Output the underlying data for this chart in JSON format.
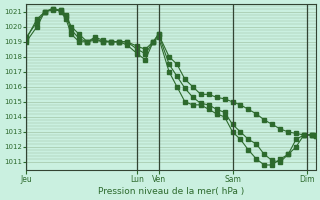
{
  "xlabel": "Pression niveau de la mer( hPa )",
  "bg_color": "#caf0e0",
  "grid_color": "#99bb99",
  "line_color": "#2d6a2d",
  "marker_color": "#2d6a2d",
  "ylim": [
    1010.5,
    1021.5
  ],
  "yticks": [
    1011,
    1012,
    1013,
    1014,
    1015,
    1016,
    1017,
    1018,
    1019,
    1020,
    1021
  ],
  "day_labels": [
    "Jeu",
    "Lun",
    "Ven",
    "Sam",
    "Dim"
  ],
  "day_positions": [
    0,
    84,
    100,
    156,
    212
  ],
  "num_points": 220,
  "series1_x": [
    0,
    8,
    14,
    20,
    26,
    30,
    34,
    40,
    46,
    52,
    58,
    64,
    70,
    76,
    84,
    90,
    96,
    100,
    108,
    114,
    120,
    126,
    132,
    138,
    144,
    150,
    156,
    162,
    168,
    174,
    180,
    186,
    192,
    198,
    204,
    210,
    216,
    219
  ],
  "series1_y": [
    1019.0,
    1020.0,
    1021.0,
    1021.1,
    1021.1,
    1020.8,
    1020.0,
    1019.5,
    1019.0,
    1019.1,
    1019.0,
    1019.0,
    1019.0,
    1019.0,
    1018.7,
    1018.5,
    1019.0,
    1019.5,
    1018.0,
    1017.5,
    1016.5,
    1016.0,
    1015.5,
    1015.5,
    1015.3,
    1015.2,
    1015.0,
    1014.8,
    1014.5,
    1014.2,
    1013.8,
    1013.5,
    1013.2,
    1013.0,
    1012.9,
    1012.8,
    1012.8,
    1012.8
  ],
  "series2_x": [
    0,
    8,
    14,
    20,
    26,
    30,
    34,
    40,
    46,
    52,
    58,
    64,
    70,
    76,
    84,
    90,
    96,
    100,
    108,
    114,
    120,
    126,
    132,
    138,
    144,
    150,
    156,
    162,
    168,
    174,
    180,
    186,
    192,
    198,
    204,
    210,
    216,
    219
  ],
  "series2_y": [
    1019.3,
    1020.3,
    1021.0,
    1021.2,
    1021.0,
    1020.5,
    1019.5,
    1019.0,
    1019.0,
    1019.3,
    1019.1,
    1019.0,
    1019.0,
    1019.0,
    1018.5,
    1018.2,
    1019.0,
    1019.5,
    1017.5,
    1016.7,
    1015.9,
    1015.3,
    1014.9,
    1014.8,
    1014.5,
    1014.3,
    1013.5,
    1013.0,
    1012.5,
    1012.2,
    1011.5,
    1011.1,
    1011.0,
    1011.5,
    1012.0,
    1012.8,
    1012.8,
    1012.7
  ],
  "series3_x": [
    0,
    8,
    14,
    20,
    26,
    30,
    34,
    40,
    46,
    52,
    58,
    64,
    70,
    76,
    84,
    90,
    96,
    100,
    108,
    114,
    120,
    126,
    132,
    138,
    144,
    150,
    156,
    162,
    168,
    174,
    180,
    186,
    192,
    198,
    204,
    210,
    216,
    219
  ],
  "series3_y": [
    1019.2,
    1020.5,
    1021.0,
    1021.2,
    1021.1,
    1020.7,
    1019.8,
    1019.2,
    1019.0,
    1019.2,
    1019.0,
    1019.0,
    1019.0,
    1018.8,
    1018.2,
    1017.8,
    1019.0,
    1019.3,
    1017.0,
    1016.0,
    1015.0,
    1014.8,
    1014.8,
    1014.5,
    1014.2,
    1014.0,
    1013.0,
    1012.5,
    1011.8,
    1011.2,
    1010.8,
    1010.8,
    1011.2,
    1011.5,
    1012.5,
    1012.8,
    1012.8,
    1012.7
  ]
}
